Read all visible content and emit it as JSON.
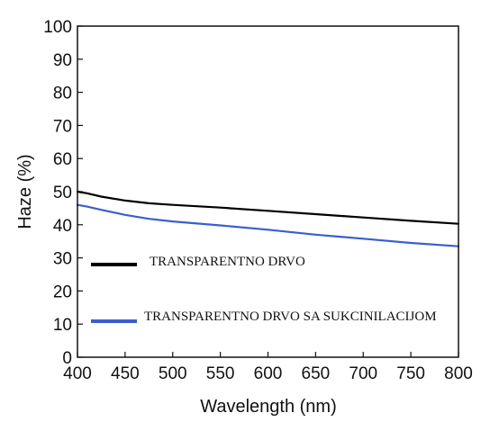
{
  "chart_data": {
    "type": "line",
    "xlabel": "Wavelength (nm)",
    "ylabel": "Haze (%)",
    "xlim": [
      400,
      800
    ],
    "ylim": [
      0,
      100
    ],
    "x_ticks": [
      400,
      450,
      500,
      550,
      600,
      650,
      700,
      750,
      800
    ],
    "y_ticks": [
      0,
      10,
      20,
      30,
      40,
      50,
      60,
      70,
      80,
      90,
      100
    ],
    "grid": false,
    "legend_position": "bottom-left",
    "series": [
      {
        "name": "TRANSPARENTNO DRVO",
        "color": "#000000",
        "x": [
          400,
          410,
          425,
          450,
          475,
          500,
          550,
          600,
          650,
          700,
          750,
          800
        ],
        "y": [
          50.0,
          49.5,
          48.5,
          47.3,
          46.5,
          46.0,
          45.2,
          44.2,
          43.2,
          42.2,
          41.2,
          40.3
        ]
      },
      {
        "name": "TRANSPARENTNO DRVO SA SUKCINILACIJOM",
        "color": "#3a5fcd",
        "x": [
          400,
          410,
          425,
          450,
          475,
          500,
          550,
          600,
          650,
          700,
          750,
          800
        ],
        "y": [
          46.0,
          45.5,
          44.5,
          43.0,
          41.8,
          41.0,
          39.8,
          38.5,
          37.0,
          35.8,
          34.5,
          33.5
        ]
      }
    ]
  }
}
